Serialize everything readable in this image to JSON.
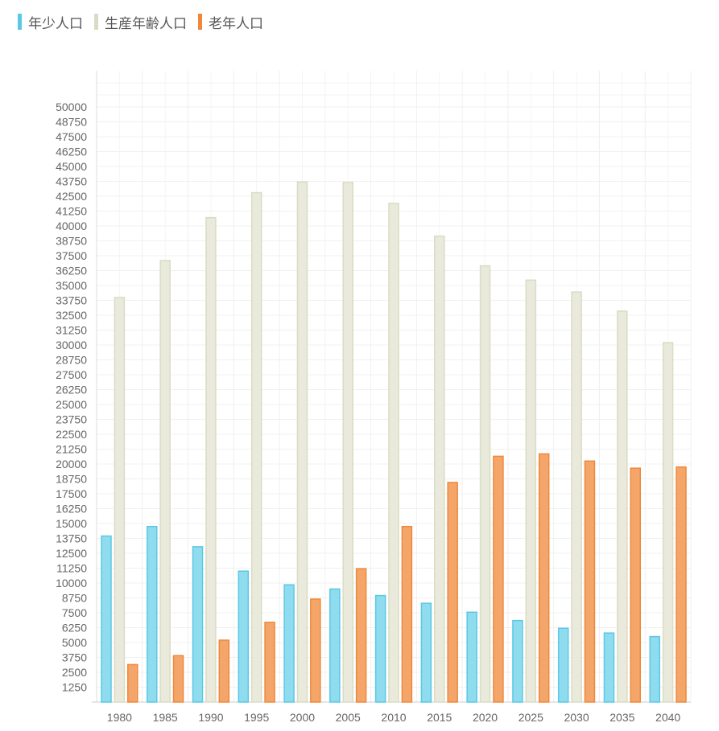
{
  "legend": {
    "items": [
      {
        "label": "年少人口",
        "color": "#5bc8e6"
      },
      {
        "label": "生産年齢人口",
        "color": "#d9dcc4"
      },
      {
        "label": "老年人口",
        "color": "#f0883a"
      }
    ]
  },
  "chart_data": {
    "type": "bar",
    "title": "",
    "xlabel": "",
    "ylabel": "",
    "grid": true,
    "legend_position": "top-left",
    "categories": [
      "1980",
      "1985",
      "1990",
      "1995",
      "2000",
      "2005",
      "2010",
      "2015",
      "2020",
      "2025",
      "2030",
      "2035",
      "2040"
    ],
    "ylim": [
      0,
      50000
    ],
    "yticks": [
      1250,
      2500,
      3750,
      5000,
      6250,
      7500,
      8750,
      10000,
      11250,
      12500,
      13750,
      15000,
      16250,
      17500,
      18750,
      20000,
      21250,
      22500,
      23750,
      25000,
      26250,
      27500,
      28750,
      30000,
      31250,
      32500,
      33750,
      35000,
      36250,
      37500,
      38750,
      40000,
      41250,
      42500,
      43750,
      45000,
      46250,
      47500,
      48750,
      50000
    ],
    "series": [
      {
        "name": "年少人口",
        "color": "#8fdcee",
        "stroke": "#5bc8e6",
        "values": [
          13950,
          14750,
          13050,
          11000,
          9850,
          9500,
          8950,
          8300,
          7550,
          6850,
          6200,
          5800,
          5500
        ]
      },
      {
        "name": "生産年齢人口",
        "color": "#e9eadb",
        "stroke": "#d9dcc4",
        "values": [
          34000,
          37100,
          40700,
          42800,
          43700,
          43650,
          41900,
          39150,
          36650,
          35450,
          34450,
          32850,
          30200
        ]
      },
      {
        "name": "老年人口",
        "color": "#f4a66a",
        "stroke": "#f0883a",
        "values": [
          3150,
          3900,
          5200,
          6700,
          8650,
          11200,
          14750,
          18450,
          20650,
          20850,
          20250,
          19650,
          19750
        ]
      }
    ]
  }
}
